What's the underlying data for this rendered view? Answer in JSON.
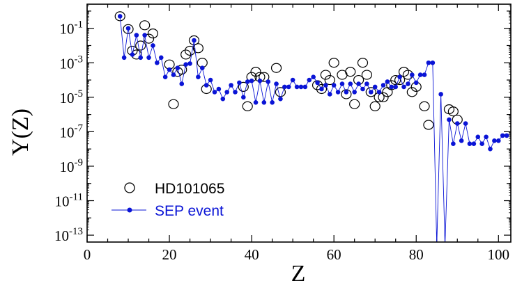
{
  "chart_data": {
    "type": "scatter",
    "xlabel": "Z",
    "ylabel": "Y(Z)",
    "xlim": [
      0,
      103
    ],
    "ylim_log10": [
      -13.4,
      0.4
    ],
    "y_scale": "log",
    "x_ticks": [
      0,
      20,
      40,
      60,
      80,
      100
    ],
    "y_tick_exponents": [
      -13,
      -11,
      -9,
      -7,
      -5,
      -3,
      -1
    ],
    "y_tick_base": "10",
    "legend_position": "bottom-left",
    "colors": {
      "sep": "#0a14d6",
      "axis": "#000000",
      "hd": "#000000"
    },
    "series": [
      {
        "name": "HD101065",
        "marker": "open-circle",
        "points": [
          [
            8,
            0.5
          ],
          [
            10,
            0.09
          ],
          [
            11,
            0.005
          ],
          [
            12,
            0.003
          ],
          [
            13,
            0.01
          ],
          [
            14,
            0.15
          ],
          [
            15,
            0.025
          ],
          [
            16,
            0.05
          ],
          [
            20,
            0.0008
          ],
          [
            21,
            4e-06
          ],
          [
            22,
            0.0003
          ],
          [
            23,
            0.0004
          ],
          [
            24,
            0.003
          ],
          [
            25,
            0.005
          ],
          [
            26,
            0.02
          ],
          [
            27,
            0.007
          ],
          [
            28,
            0.001
          ],
          [
            29,
            3e-05
          ],
          [
            38,
            4e-05
          ],
          [
            39,
            3e-06
          ],
          [
            40,
            0.00015
          ],
          [
            41,
            0.0003
          ],
          [
            42,
            0.00015
          ],
          [
            43,
            0.00015
          ],
          [
            46,
            0.0005
          ],
          [
            47,
            2e-05
          ],
          [
            56,
            5e-05
          ],
          [
            57,
            3e-05
          ],
          [
            58,
            0.0002
          ],
          [
            59,
            0.0001
          ],
          [
            60,
            0.001
          ],
          [
            62,
            0.0002
          ],
          [
            63,
            1.5e-05
          ],
          [
            64,
            0.0003
          ],
          [
            65,
            4e-06
          ],
          [
            66,
            0.0001
          ],
          [
            67,
            0.001
          ],
          [
            68,
            0.0002
          ],
          [
            69,
            2e-05
          ],
          [
            70,
            3e-06
          ],
          [
            71,
            1e-05
          ],
          [
            72,
            1e-05
          ],
          [
            73,
            2e-05
          ],
          [
            74,
            5e-05
          ],
          [
            75,
            0.0001
          ],
          [
            76,
            0.0001
          ],
          [
            77,
            0.0003
          ],
          [
            78,
            0.0002
          ],
          [
            79,
            2e-05
          ],
          [
            80,
            4e-05
          ],
          [
            82,
            3e-06
          ],
          [
            83,
            2.5e-07
          ],
          [
            88,
            2e-06
          ],
          [
            89,
            1.5e-06
          ],
          [
            90,
            5e-07
          ]
        ]
      },
      {
        "name": "SEP event",
        "marker": "filled-dot-line",
        "points": [
          [
            8,
            0.5
          ],
          [
            9,
            0.002
          ],
          [
            10,
            0.1
          ],
          [
            11,
            0.003
          ],
          [
            12,
            0.04
          ],
          [
            13,
            0.002
          ],
          [
            14,
            0.04
          ],
          [
            15,
            0.002
          ],
          [
            16,
            0.01
          ],
          [
            17,
            0.001
          ],
          [
            18,
            0.002
          ],
          [
            19,
            0.00015
          ],
          [
            20,
            0.0004
          ],
          [
            21,
            0.0002
          ],
          [
            22,
            0.0005
          ],
          [
            23,
            6e-05
          ],
          [
            24,
            0.0008
          ],
          [
            25,
            0.0009
          ],
          [
            26,
            0.02
          ],
          [
            27,
            0.00015
          ],
          [
            28,
            0.0005
          ],
          [
            29,
            5e-05
          ],
          [
            30,
            0.0001
          ],
          [
            31,
            2e-05
          ],
          [
            32,
            3e-05
          ],
          [
            33,
            8e-06
          ],
          [
            34,
            2e-05
          ],
          [
            35,
            5e-05
          ],
          [
            36,
            2e-05
          ],
          [
            37,
            7e-05
          ],
          [
            38,
            1e-05
          ],
          [
            39,
            8e-05
          ],
          [
            40,
            9e-05
          ],
          [
            41,
            5e-06
          ],
          [
            42,
            9e-05
          ],
          [
            43,
            5e-06
          ],
          [
            44,
            8e-05
          ],
          [
            45,
            5e-06
          ],
          [
            46,
            6e-05
          ],
          [
            47,
            8e-06
          ],
          [
            48,
            4e-05
          ],
          [
            49,
            4e-05
          ],
          [
            50,
            0.0001
          ],
          [
            51,
            4e-05
          ],
          [
            52,
            4e-05
          ],
          [
            53,
            4e-05
          ],
          [
            54,
            0.0001
          ],
          [
            55,
            0.00015
          ],
          [
            56,
            7e-05
          ],
          [
            57,
            3e-05
          ],
          [
            58,
            5e-05
          ],
          [
            59,
            1.5e-05
          ],
          [
            60,
            5e-05
          ],
          [
            61,
            2e-05
          ],
          [
            62,
            6e-05
          ],
          [
            63,
            2e-05
          ],
          [
            64,
            6e-05
          ],
          [
            65,
            2e-05
          ],
          [
            66,
            6e-05
          ],
          [
            67,
            3e-05
          ],
          [
            68,
            6e-05
          ],
          [
            69,
            2e-05
          ],
          [
            70,
            4e-05
          ],
          [
            71,
            2e-05
          ],
          [
            72,
            5e-05
          ],
          [
            73,
            8e-05
          ],
          [
            74,
            4e-05
          ],
          [
            75,
            4e-05
          ],
          [
            76,
            0.00015
          ],
          [
            77,
            4e-05
          ],
          [
            78,
            6e-05
          ],
          [
            79,
            0.0002
          ],
          [
            80,
            7e-05
          ],
          [
            81,
            0.0002
          ],
          [
            82,
            0.0002
          ],
          [
            83,
            0.001
          ],
          [
            84,
            0.001
          ],
          [
            85,
            1e-14
          ],
          [
            86,
            1.5e-05
          ],
          [
            87,
            1e-14
          ],
          [
            88,
            5e-07
          ],
          [
            89,
            2e-08
          ],
          [
            90,
            3e-07
          ],
          [
            91,
            3e-08
          ],
          [
            92,
            3e-07
          ],
          [
            93,
            2e-08
          ],
          [
            94,
            2e-08
          ],
          [
            95,
            5e-08
          ],
          [
            96,
            2e-08
          ],
          [
            97,
            5e-08
          ],
          [
            98,
            1e-08
          ],
          [
            99,
            3e-08
          ],
          [
            100,
            3e-08
          ],
          [
            101,
            6e-08
          ],
          [
            102,
            6e-08
          ]
        ]
      }
    ]
  }
}
